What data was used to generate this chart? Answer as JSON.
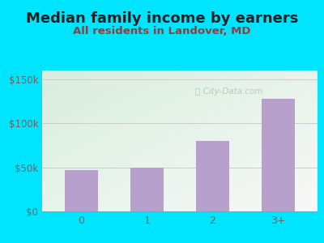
{
  "title": "Median family income by earners",
  "subtitle": "All residents in Landover, MD",
  "categories": [
    "0",
    "1",
    "2",
    "3+"
  ],
  "values": [
    47000,
    50000,
    80000,
    128000
  ],
  "bar_color": "#b8a0cc",
  "ylim": [
    0,
    160000
  ],
  "yticks": [
    0,
    50000,
    100000,
    150000
  ],
  "ytick_labels": [
    "$0",
    "$50k",
    "$100k",
    "$150k"
  ],
  "title_fontsize": 13,
  "subtitle_fontsize": 9.5,
  "title_color": "#222222",
  "subtitle_color": "#8b4040",
  "tick_color": "#666666",
  "bg_outer": "#00e5ff",
  "watermark": "Ⓜ City-Data.com"
}
